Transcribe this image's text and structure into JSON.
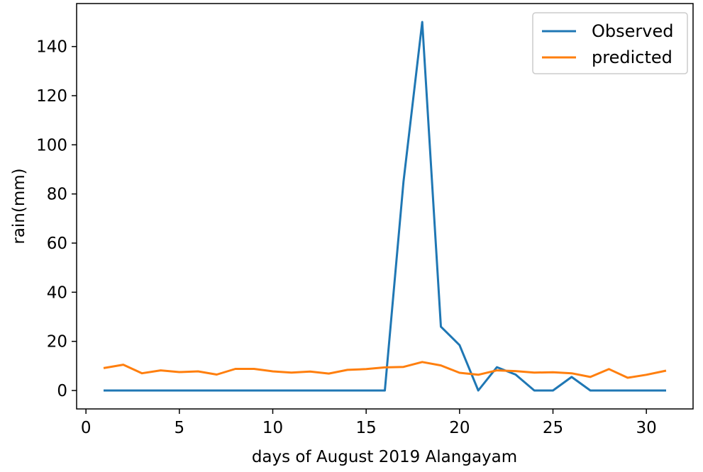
{
  "chart_data": {
    "type": "line",
    "title": "",
    "xlabel": "days of August 2019 Alangayam",
    "ylabel": "rain(mm)",
    "xlim": [
      -0.5,
      32.5
    ],
    "ylim": [
      -7.5,
      157.5
    ],
    "xticks": [
      0,
      5,
      10,
      15,
      20,
      25,
      30
    ],
    "yticks": [
      0,
      20,
      40,
      60,
      80,
      100,
      120,
      140
    ],
    "grid": false,
    "legend_position": "top-right",
    "series": [
      {
        "name": "Observed",
        "color": "#1f77b4",
        "x": [
          1,
          2,
          3,
          4,
          5,
          6,
          7,
          8,
          9,
          10,
          11,
          12,
          13,
          14,
          15,
          16,
          17,
          18,
          19,
          20,
          21,
          22,
          23,
          24,
          25,
          26,
          27,
          28,
          29,
          30,
          31
        ],
        "values": [
          0,
          0,
          0,
          0,
          0,
          0,
          0,
          0,
          0,
          0,
          0,
          0,
          0,
          0,
          0,
          0,
          85,
          150,
          26,
          18.5,
          0,
          9.5,
          6.5,
          0,
          0,
          5.5,
          0,
          0,
          0,
          0,
          0
        ]
      },
      {
        "name": "predicted",
        "color": "#ff7f0e",
        "x": [
          1,
          2,
          3,
          4,
          5,
          6,
          7,
          8,
          9,
          10,
          11,
          12,
          13,
          14,
          15,
          16,
          17,
          18,
          19,
          20,
          21,
          22,
          23,
          24,
          25,
          26,
          27,
          28,
          29,
          30,
          31
        ],
        "values": [
          9.2,
          10.5,
          7,
          8.2,
          7.5,
          7.8,
          6.5,
          8.8,
          8.8,
          7.8,
          7.3,
          7.7,
          6.9,
          8.4,
          8.7,
          9.4,
          9.6,
          11.6,
          10.2,
          7.2,
          6.4,
          8.2,
          7.9,
          7.3,
          7.4,
          7,
          5.5,
          8.7,
          5.2,
          6.4,
          8
        ]
      }
    ]
  }
}
